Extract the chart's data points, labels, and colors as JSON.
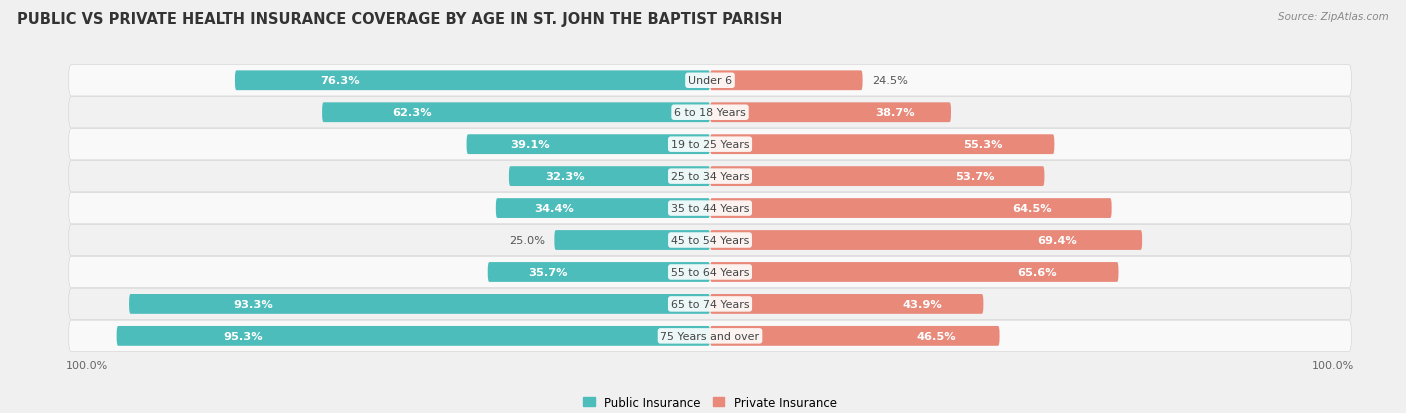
{
  "title": "PUBLIC VS PRIVATE HEALTH INSURANCE COVERAGE BY AGE IN ST. JOHN THE BAPTIST PARISH",
  "source": "Source: ZipAtlas.com",
  "categories": [
    "Under 6",
    "6 to 18 Years",
    "19 to 25 Years",
    "25 to 34 Years",
    "35 to 44 Years",
    "45 to 54 Years",
    "55 to 64 Years",
    "65 to 74 Years",
    "75 Years and over"
  ],
  "public_values": [
    76.3,
    62.3,
    39.1,
    32.3,
    34.4,
    25.0,
    35.7,
    93.3,
    95.3
  ],
  "private_values": [
    24.5,
    38.7,
    55.3,
    53.7,
    64.5,
    69.4,
    65.6,
    43.9,
    46.5
  ],
  "public_color": "#4dbdbb",
  "private_color": "#e8897a",
  "bg_color": "#f0f0f0",
  "row_bg": "#f7f7f7",
  "row_border": "#e0e0e0",
  "max_value": 100.0,
  "bar_height": 0.62,
  "title_fontsize": 10.5,
  "label_fontsize": 8.2,
  "tick_fontsize": 8,
  "legend_fontsize": 8.5,
  "inside_label_threshold_public": 30,
  "inside_label_threshold_private": 30
}
